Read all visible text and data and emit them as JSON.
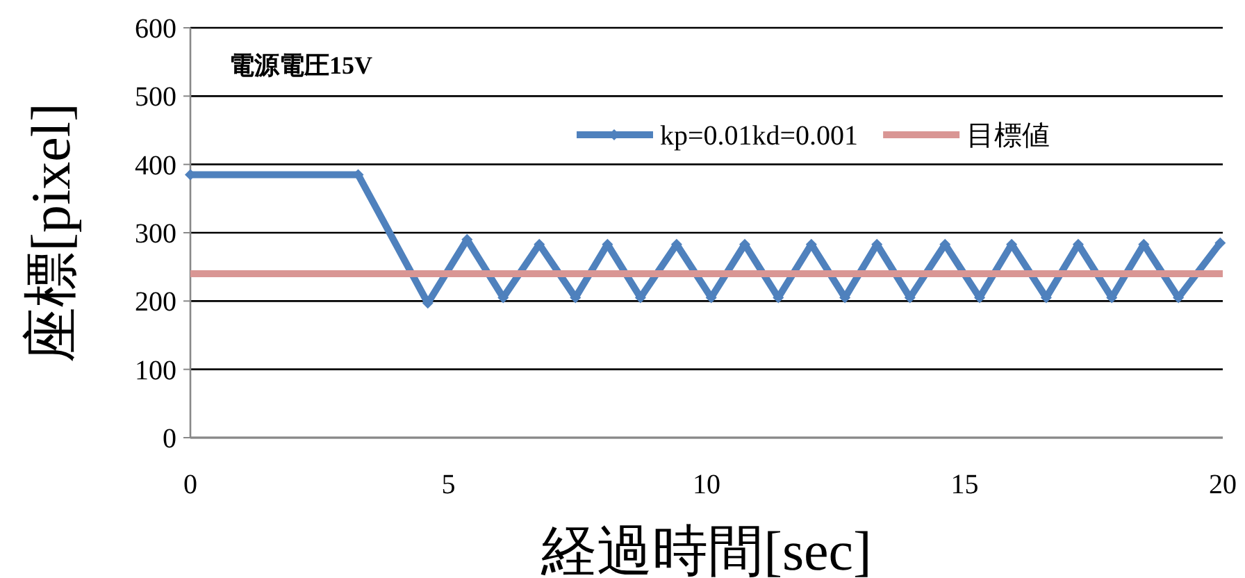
{
  "chart_data": {
    "type": "line",
    "title": "電源電圧15V",
    "xlabel": "経過時間[sec]",
    "ylabel": "座標[pixel]",
    "xlim": [
      0,
      20
    ],
    "xticks": [
      0,
      5,
      10,
      15,
      20
    ],
    "ylim": [
      0,
      600
    ],
    "yticks": [
      0,
      100,
      200,
      300,
      400,
      500,
      600
    ],
    "grid": "y",
    "legend": "top right",
    "series": [
      {
        "name": "kp=0.01kd=0.001",
        "color": "#4f81bd",
        "marker": "diamond",
        "x": [
          0,
          3.25,
          4.6,
          5.36,
          6.06,
          6.76,
          7.46,
          8.08,
          8.72,
          9.42,
          10.09,
          10.74,
          11.39,
          12.03,
          12.68,
          13.3,
          13.94,
          14.62,
          15.29,
          15.91,
          16.58,
          17.2,
          17.85,
          18.47,
          19.14,
          19.95
        ],
        "values": [
          385,
          385,
          197,
          290,
          205,
          283,
          205,
          283,
          205,
          283,
          205,
          283,
          205,
          283,
          205,
          283,
          205,
          283,
          205,
          283,
          205,
          283,
          205,
          283,
          205,
          285
        ]
      },
      {
        "name": "目標値",
        "color": "#d99694",
        "marker": "none",
        "x": [
          0,
          20
        ],
        "values": [
          240,
          240
        ]
      }
    ]
  }
}
